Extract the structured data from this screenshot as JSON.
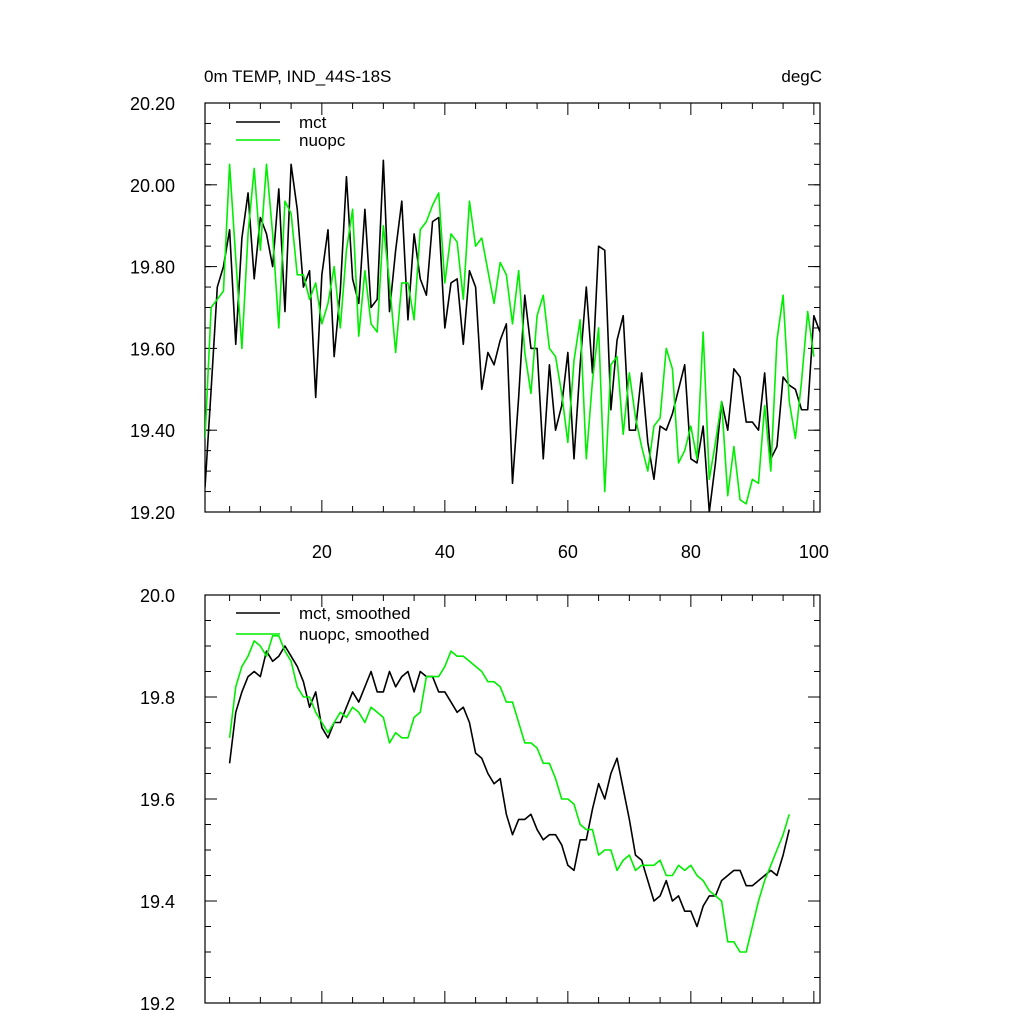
{
  "chart_data": [
    {
      "type": "line",
      "title": "0m TEMP, IND_44S-18S",
      "units": "degC",
      "ylim": [
        19.2,
        20.2
      ],
      "xlim": [
        1,
        101
      ],
      "y_tick_values": [
        19.2,
        19.4,
        19.6,
        19.8,
        20.0,
        20.2
      ],
      "y_tick_labels": [
        "19.20",
        "19.40",
        "19.60",
        "19.80",
        "20.00",
        "20.20"
      ],
      "x_tick_values": [
        20,
        40,
        60,
        80,
        100
      ],
      "x_tick_labels": [
        "20",
        "40",
        "60",
        "80",
        "100"
      ],
      "legend_position": "top-left",
      "grid": false,
      "series": [
        {
          "name": "mct",
          "color": "#000000",
          "x_start": 1,
          "values": [
            19.26,
            19.5,
            19.75,
            19.8,
            19.89,
            19.61,
            19.87,
            19.98,
            19.77,
            19.92,
            19.88,
            19.8,
            19.99,
            19.69,
            20.05,
            19.94,
            19.75,
            19.79,
            19.48,
            19.78,
            19.89,
            19.58,
            19.74,
            20.02,
            19.77,
            19.71,
            19.94,
            19.7,
            19.72,
            20.06,
            19.69,
            19.84,
            19.96,
            19.67,
            19.88,
            19.77,
            19.73,
            19.91,
            19.92,
            19.65,
            19.76,
            19.77,
            19.61,
            19.79,
            19.75,
            19.5,
            19.59,
            19.56,
            19.62,
            19.66,
            19.27,
            19.48,
            19.73,
            19.6,
            19.6,
            19.33,
            19.56,
            19.4,
            19.46,
            19.59,
            19.33,
            19.56,
            19.75,
            19.54,
            19.85,
            19.84,
            19.45,
            19.62,
            19.68,
            19.4,
            19.4,
            19.54,
            19.37,
            19.28,
            19.41,
            19.4,
            19.44,
            19.5,
            19.56,
            19.33,
            19.32,
            19.41,
            19.2,
            19.32,
            19.47,
            19.4,
            19.55,
            19.53,
            19.42,
            19.42,
            19.4,
            19.54,
            19.33,
            19.36,
            19.53,
            19.51,
            19.5,
            19.45,
            19.45,
            19.68,
            19.64
          ]
        },
        {
          "name": "nuopc",
          "color": "#00ee00",
          "x_start": 1,
          "values": [
            19.38,
            19.7,
            19.72,
            19.74,
            20.05,
            19.82,
            19.6,
            19.88,
            20.04,
            19.84,
            20.05,
            19.88,
            19.65,
            19.96,
            19.93,
            19.78,
            19.78,
            19.72,
            19.76,
            19.66,
            19.71,
            19.8,
            19.65,
            19.84,
            19.94,
            19.63,
            19.79,
            19.66,
            19.64,
            19.9,
            19.76,
            19.59,
            19.76,
            19.76,
            19.67,
            19.89,
            19.91,
            19.95,
            19.98,
            19.76,
            19.88,
            19.86,
            19.72,
            19.96,
            19.85,
            19.87,
            19.79,
            19.71,
            19.81,
            19.78,
            19.66,
            19.79,
            19.59,
            19.49,
            19.68,
            19.73,
            19.6,
            19.58,
            19.49,
            19.37,
            19.57,
            19.67,
            19.33,
            19.52,
            19.65,
            19.25,
            19.56,
            19.58,
            19.39,
            19.54,
            19.43,
            19.36,
            19.3,
            19.41,
            19.43,
            19.6,
            19.55,
            19.32,
            19.35,
            19.41,
            19.33,
            19.64,
            19.28,
            19.37,
            19.47,
            19.24,
            19.36,
            19.23,
            19.22,
            19.28,
            19.27,
            19.46,
            19.3,
            19.62,
            19.73,
            19.47,
            19.38,
            19.52,
            19.69,
            19.58
          ]
        }
      ]
    },
    {
      "type": "line",
      "ylim": [
        19.2,
        20.0
      ],
      "xlim": [
        1,
        101
      ],
      "y_tick_values": [
        19.2,
        19.4,
        19.6,
        19.8,
        20.0
      ],
      "y_tick_labels": [
        "19.2",
        "19.4",
        "19.6",
        "19.8",
        "20.0"
      ],
      "x_tick_values": [
        20,
        40,
        60,
        80,
        100
      ],
      "x_tick_labels": [],
      "legend_position": "top-left",
      "grid": false,
      "series": [
        {
          "name": "mct, smoothed",
          "color": "#000000",
          "x_start": 5,
          "values": [
            19.67,
            19.77,
            19.81,
            19.84,
            19.85,
            19.84,
            19.89,
            19.87,
            19.88,
            19.9,
            19.88,
            19.86,
            19.83,
            19.78,
            19.81,
            19.74,
            19.72,
            19.75,
            19.75,
            19.78,
            19.81,
            19.79,
            19.82,
            19.85,
            19.81,
            19.81,
            19.85,
            19.82,
            19.84,
            19.85,
            19.81,
            19.85,
            19.84,
            19.84,
            19.81,
            19.81,
            19.79,
            19.77,
            19.78,
            19.75,
            19.69,
            19.68,
            19.65,
            19.63,
            19.64,
            19.57,
            19.53,
            19.56,
            19.56,
            19.57,
            19.54,
            19.52,
            19.53,
            19.53,
            19.51,
            19.47,
            19.46,
            19.52,
            19.52,
            19.58,
            19.63,
            19.6,
            19.65,
            19.68,
            19.62,
            19.56,
            19.49,
            19.48,
            19.44,
            19.4,
            19.41,
            19.44,
            19.4,
            19.41,
            19.38,
            19.38,
            19.35,
            19.39,
            19.41,
            19.41,
            19.44,
            19.45,
            19.46,
            19.46,
            19.43,
            19.43,
            19.44,
            19.45,
            19.46,
            19.45,
            19.49,
            19.54
          ]
        },
        {
          "name": "nuopc, smoothed",
          "color": "#00ee00",
          "x_start": 5,
          "values": [
            19.72,
            19.82,
            19.86,
            19.88,
            19.91,
            19.9,
            19.88,
            19.92,
            19.92,
            19.89,
            19.87,
            19.82,
            19.8,
            19.8,
            19.77,
            19.75,
            19.73,
            19.75,
            19.77,
            19.76,
            19.78,
            19.77,
            19.75,
            19.78,
            19.77,
            19.76,
            19.71,
            19.73,
            19.72,
            19.72,
            19.76,
            19.77,
            19.84,
            19.84,
            19.84,
            19.86,
            19.89,
            19.88,
            19.88,
            19.87,
            19.86,
            19.85,
            19.83,
            19.83,
            19.82,
            19.79,
            19.79,
            19.75,
            19.71,
            19.71,
            19.7,
            19.67,
            19.67,
            19.64,
            19.6,
            19.6,
            19.59,
            19.55,
            19.54,
            19.54,
            19.49,
            19.5,
            19.5,
            19.46,
            19.48,
            19.49,
            19.46,
            19.47,
            19.47,
            19.47,
            19.48,
            19.45,
            19.45,
            19.47,
            19.46,
            19.47,
            19.45,
            19.44,
            19.42,
            19.41,
            19.4,
            19.32,
            19.32,
            19.3,
            19.3,
            19.35,
            19.4,
            19.44,
            19.47,
            19.5,
            19.53,
            19.57
          ]
        }
      ]
    }
  ]
}
